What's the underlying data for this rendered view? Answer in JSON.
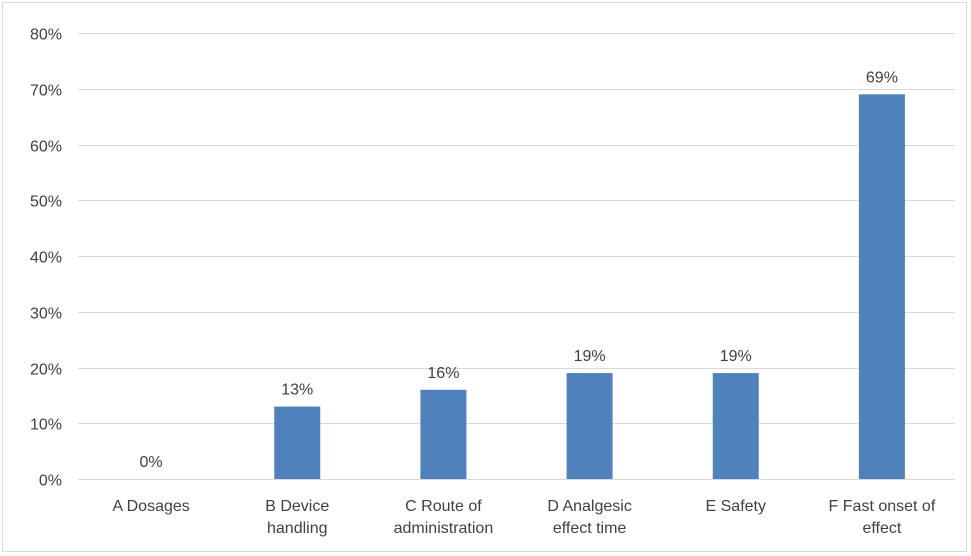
{
  "chart_data": {
    "type": "bar",
    "categories": [
      [
        "A Dosages"
      ],
      [
        "B Device",
        "handling"
      ],
      [
        "C Route of",
        "administration"
      ],
      [
        "D Analgesic",
        "effect time"
      ],
      [
        "E Safety"
      ],
      [
        "F Fast onset of",
        "effect"
      ]
    ],
    "values": [
      0,
      13,
      16,
      19,
      19,
      69
    ],
    "data_labels": [
      "0%",
      "13%",
      "16%",
      "19%",
      "19%",
      "69%"
    ],
    "y_ticks": [
      "0%",
      "10%",
      "20%",
      "30%",
      "40%",
      "50%",
      "60%",
      "70%",
      "80%"
    ],
    "ylim": [
      0,
      80
    ],
    "grid": true,
    "legend": "none",
    "bar_color": "#4f81bd",
    "gridline_color": "#d9d9d9",
    "text_color": "#404040"
  }
}
